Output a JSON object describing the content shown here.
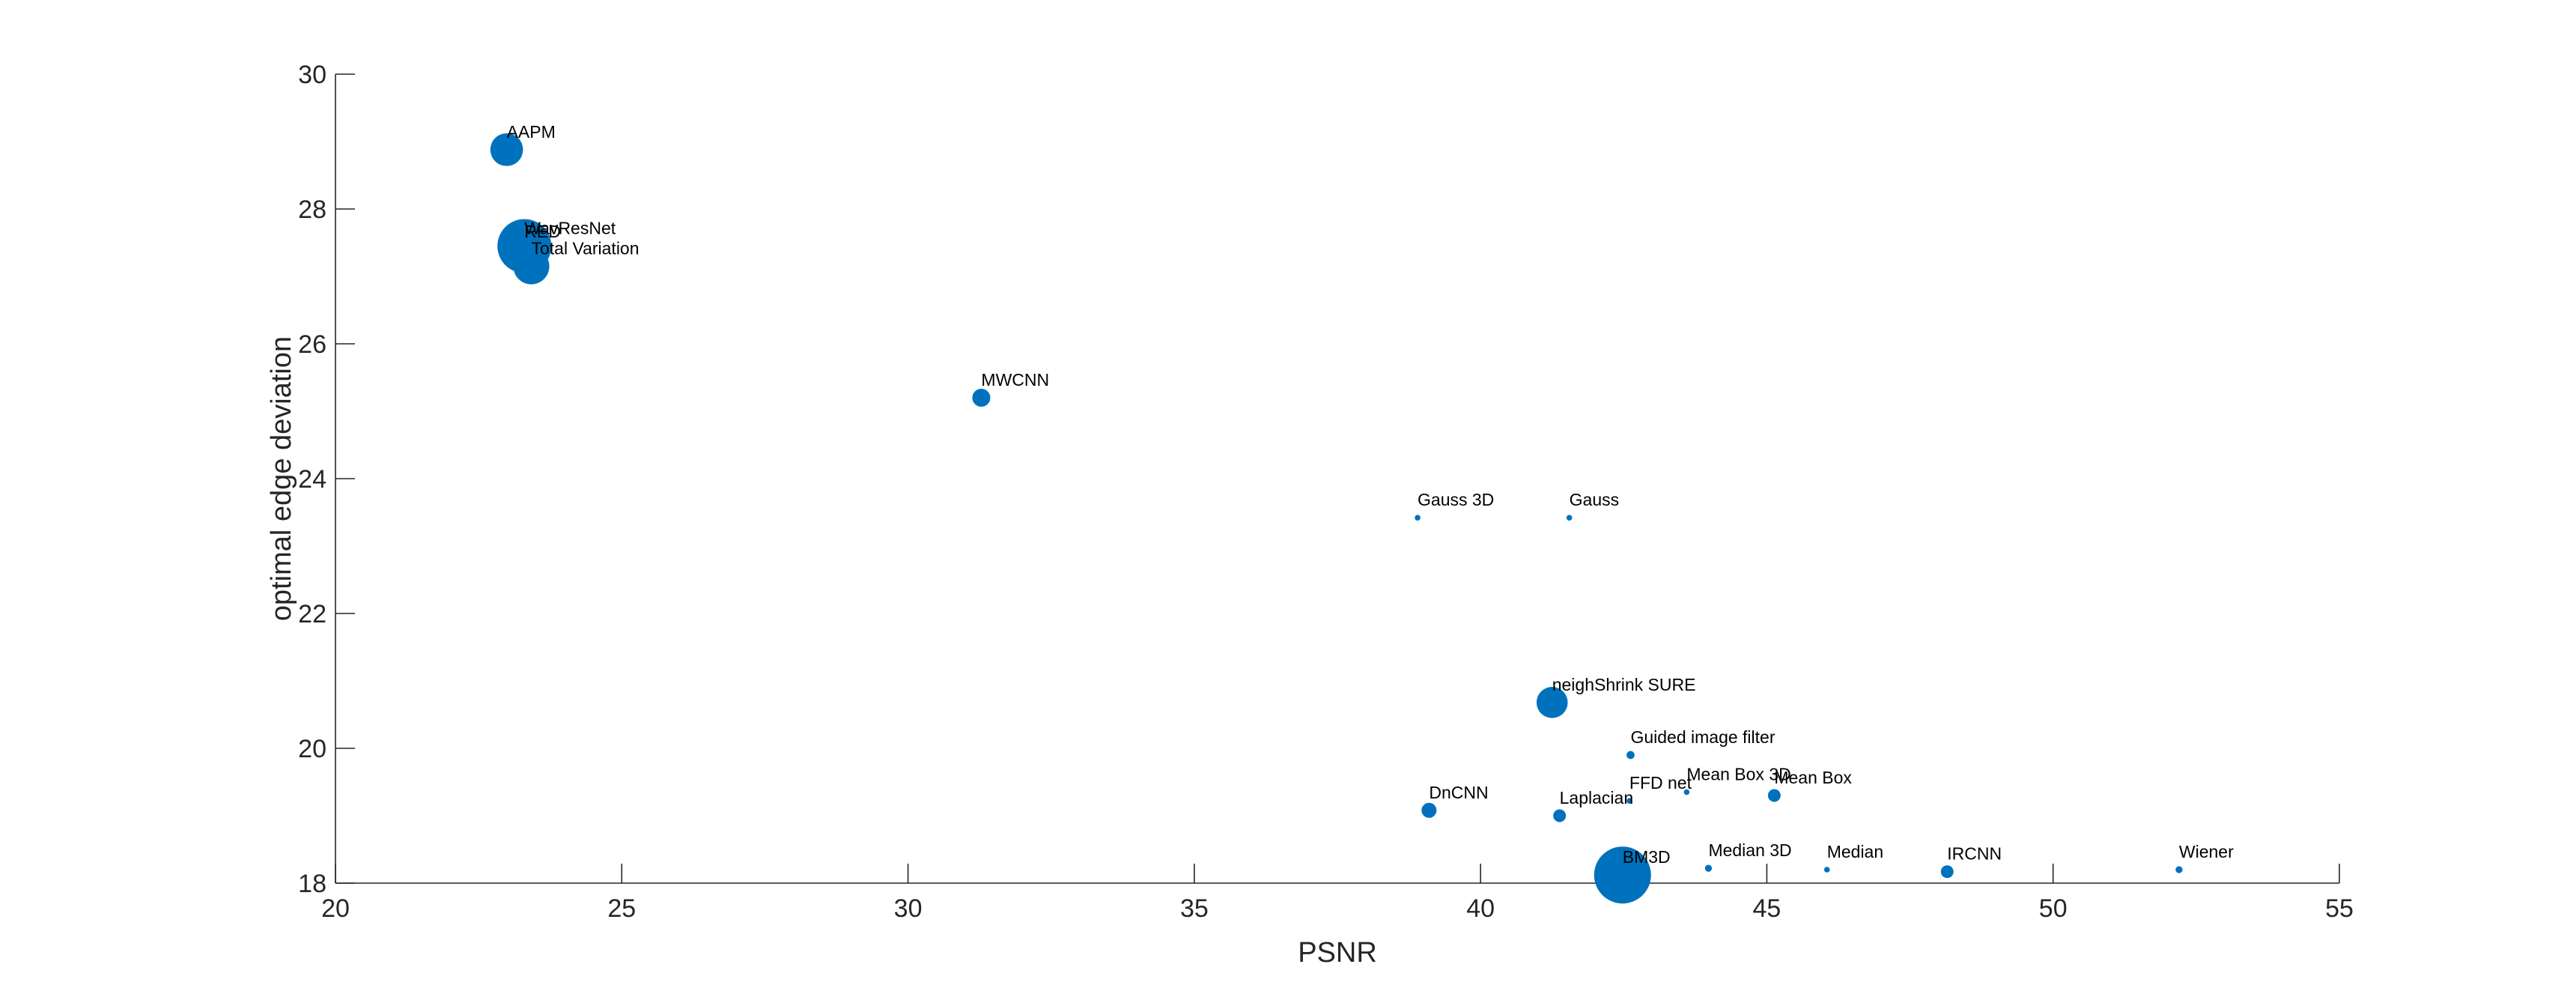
{
  "chart_data": {
    "type": "scatter",
    "title": "",
    "xlabel": "PSNR",
    "ylabel": "optimal edge deviation",
    "xlim": [
      20,
      55
    ],
    "ylim": [
      18,
      30
    ],
    "xticks": [
      20,
      25,
      30,
      35,
      40,
      45,
      50,
      55
    ],
    "yticks": [
      18,
      20,
      22,
      24,
      26,
      28,
      30
    ],
    "grid": false,
    "marker_color": "#0072BD",
    "bubble_size_meaning": "relative marker area (unlabeled)",
    "points": [
      {
        "label": "AAPM",
        "x": 22.99,
        "y": 28.88,
        "size": 0.33
      },
      {
        "label": "WavResNet",
        "x": 23.3,
        "y": 27.45,
        "size": 0.9
      },
      {
        "label": "RED",
        "x": 23.3,
        "y": 27.4,
        "size": 0.55
      },
      {
        "label": "Total Variation",
        "x": 23.42,
        "y": 27.15,
        "size": 0.4
      },
      {
        "label": "MWCNN",
        "x": 31.28,
        "y": 25.2,
        "size": 0.1
      },
      {
        "label": "Gauss 3D",
        "x": 38.9,
        "y": 23.42,
        "size": 0.01
      },
      {
        "label": "Gauss",
        "x": 41.55,
        "y": 23.42,
        "size": 0.01
      },
      {
        "label": "neighShrink SURE",
        "x": 41.25,
        "y": 20.68,
        "size": 0.3
      },
      {
        "label": "Guided image filter",
        "x": 42.62,
        "y": 19.9,
        "size": 0.02
      },
      {
        "label": "DnCNN",
        "x": 39.1,
        "y": 19.08,
        "size": 0.07
      },
      {
        "label": "Laplacian",
        "x": 41.38,
        "y": 19.0,
        "size": 0.05
      },
      {
        "label": "FFD net",
        "x": 42.6,
        "y": 19.22,
        "size": 0.01
      },
      {
        "label": "Mean Box 3D",
        "x": 43.6,
        "y": 19.35,
        "size": 0.01
      },
      {
        "label": "Mean Box",
        "x": 45.13,
        "y": 19.3,
        "size": 0.05
      },
      {
        "label": "BM3D",
        "x": 42.48,
        "y": 18.12,
        "size": 1.0
      },
      {
        "label": "Median 3D",
        "x": 43.98,
        "y": 18.22,
        "size": 0.015
      },
      {
        "label": "Median",
        "x": 46.05,
        "y": 18.2,
        "size": 0.01
      },
      {
        "label": "IRCNN",
        "x": 48.15,
        "y": 18.17,
        "size": 0.05
      },
      {
        "label": "Wiener",
        "x": 52.2,
        "y": 18.2,
        "size": 0.015
      }
    ]
  }
}
